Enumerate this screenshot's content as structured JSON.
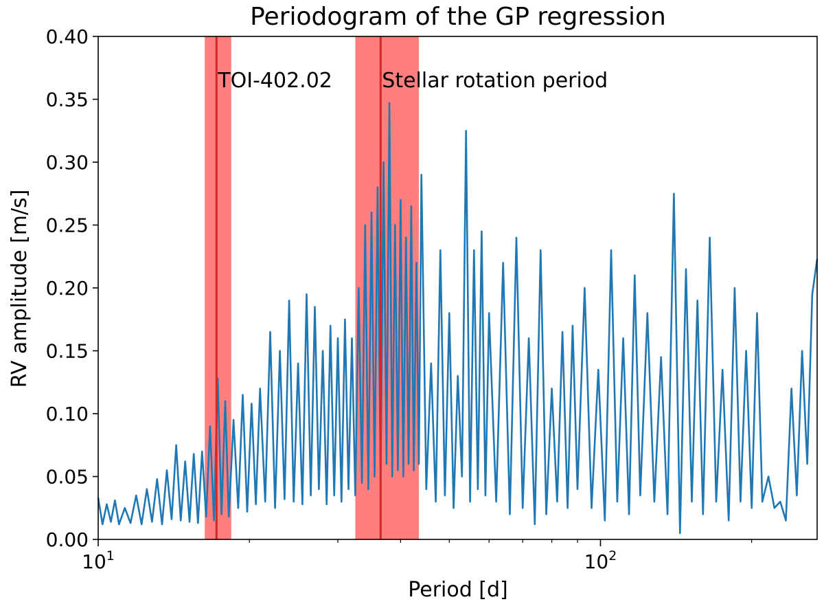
{
  "chart_data": {
    "type": "line",
    "title": "Periodogram of the GP regression",
    "xlabel": "Period [d]",
    "ylabel": "RV amplitude [m/s]",
    "xscale": "log",
    "xlim": [
      10,
      270
    ],
    "ylim": [
      0.0,
      0.4
    ],
    "yticks": [
      0.0,
      0.05,
      0.1,
      0.15,
      0.2,
      0.25,
      0.3,
      0.35,
      0.4
    ],
    "ytick_labels": [
      "0.00",
      "0.05",
      "0.10",
      "0.15",
      "0.20",
      "0.25",
      "0.30",
      "0.35",
      "0.40"
    ],
    "xticks": [
      {
        "value": 10,
        "base": "10",
        "exp": "1"
      },
      {
        "value": 100,
        "base": "10",
        "exp": "2"
      }
    ],
    "colors": {
      "series": "#1f77b4",
      "band": "#ff7f7f",
      "marker_line": "#d62728"
    },
    "bands": [
      {
        "name": "TOI-402.02",
        "center": 17.2,
        "low": 16.3,
        "high": 18.4
      },
      {
        "name": "Stellar rotation period",
        "center": 36.5,
        "low": 32.5,
        "high": 43.5
      }
    ],
    "annotations": [
      {
        "text": "TOI-402.02",
        "x": 17.2,
        "y": 0.365
      },
      {
        "text": "Stellar rotation period",
        "x": 36.5,
        "y": 0.365
      }
    ],
    "series": [
      {
        "name": "periodogram",
        "x": [
          10.0,
          10.2,
          10.4,
          10.6,
          10.8,
          11.0,
          11.3,
          11.6,
          11.9,
          12.2,
          12.5,
          12.8,
          13.1,
          13.4,
          13.7,
          14.0,
          14.3,
          14.6,
          14.9,
          15.2,
          15.5,
          15.8,
          16.1,
          16.4,
          16.7,
          17.0,
          17.3,
          17.6,
          17.9,
          18.2,
          18.6,
          19.0,
          19.4,
          19.8,
          20.2,
          20.6,
          21.0,
          21.5,
          22.0,
          22.5,
          23.0,
          23.5,
          24.0,
          24.5,
          25.0,
          25.5,
          26.0,
          26.5,
          27.0,
          27.5,
          28.0,
          28.5,
          29.0,
          29.5,
          30.0,
          30.5,
          31.0,
          31.5,
          32.0,
          32.5,
          33.0,
          33.5,
          34.0,
          34.5,
          35.0,
          35.5,
          36.0,
          36.5,
          37.0,
          37.5,
          38.0,
          38.5,
          39.0,
          39.5,
          40.0,
          40.5,
          41.0,
          41.5,
          42.0,
          42.5,
          43.0,
          43.5,
          44.0,
          45.0,
          46.0,
          47.0,
          48.0,
          49.0,
          50.0,
          51.0,
          52.0,
          53.0,
          54.0,
          55.0,
          56.0,
          57.0,
          58.0,
          59.0,
          60.0,
          62.0,
          64.0,
          66.0,
          68.0,
          70.0,
          72.0,
          74.0,
          76.0,
          78.0,
          80.0,
          82.0,
          84.0,
          86.0,
          88.0,
          90.0,
          93.0,
          96.0,
          99.0,
          102.0,
          105.0,
          108.0,
          111.0,
          114.0,
          117.0,
          120.0,
          124.0,
          128.0,
          132.0,
          136.0,
          140.0,
          144.0,
          148.0,
          152.0,
          156.0,
          160.0,
          165.0,
          170.0,
          175.0,
          180.0,
          185.0,
          190.0,
          195.0,
          200.0,
          205.0,
          210.0,
          216.0,
          222.0,
          228.0,
          234.0,
          240.0,
          246.0,
          252.0,
          258.0,
          264.0,
          270.0
        ],
        "values": [
          0.033,
          0.012,
          0.028,
          0.014,
          0.031,
          0.012,
          0.025,
          0.013,
          0.035,
          0.012,
          0.04,
          0.014,
          0.048,
          0.012,
          0.055,
          0.016,
          0.075,
          0.015,
          0.062,
          0.014,
          0.068,
          0.013,
          0.07,
          0.018,
          0.09,
          0.015,
          0.128,
          0.02,
          0.11,
          0.018,
          0.095,
          0.025,
          0.115,
          0.022,
          0.108,
          0.028,
          0.12,
          0.03,
          0.165,
          0.025,
          0.15,
          0.032,
          0.19,
          0.03,
          0.14,
          0.028,
          0.195,
          0.035,
          0.185,
          0.04,
          0.15,
          0.028,
          0.17,
          0.035,
          0.16,
          0.03,
          0.175,
          0.04,
          0.16,
          0.035,
          0.2,
          0.045,
          0.25,
          0.04,
          0.26,
          0.05,
          0.28,
          0.045,
          0.3,
          0.06,
          0.347,
          0.05,
          0.25,
          0.055,
          0.27,
          0.05,
          0.24,
          0.06,
          0.265,
          0.055,
          0.22,
          0.06,
          0.29,
          0.04,
          0.14,
          0.03,
          0.23,
          0.035,
          0.18,
          0.025,
          0.13,
          0.05,
          0.325,
          0.03,
          0.23,
          0.04,
          0.245,
          0.035,
          0.18,
          0.03,
          0.22,
          0.02,
          0.24,
          0.025,
          0.16,
          0.012,
          0.23,
          0.02,
          0.12,
          0.03,
          0.165,
          0.025,
          0.17,
          0.04,
          0.2,
          0.025,
          0.135,
          0.015,
          0.23,
          0.03,
          0.16,
          0.02,
          0.21,
          0.035,
          0.18,
          0.03,
          0.145,
          0.02,
          0.275,
          0.005,
          0.215,
          0.03,
          0.19,
          0.02,
          0.24,
          0.03,
          0.135,
          0.015,
          0.2,
          0.03,
          0.15,
          0.025,
          0.18,
          0.03,
          0.05,
          0.025,
          0.03,
          0.015,
          0.12,
          0.035,
          0.15,
          0.06,
          0.195,
          0.223
        ]
      }
    ]
  }
}
